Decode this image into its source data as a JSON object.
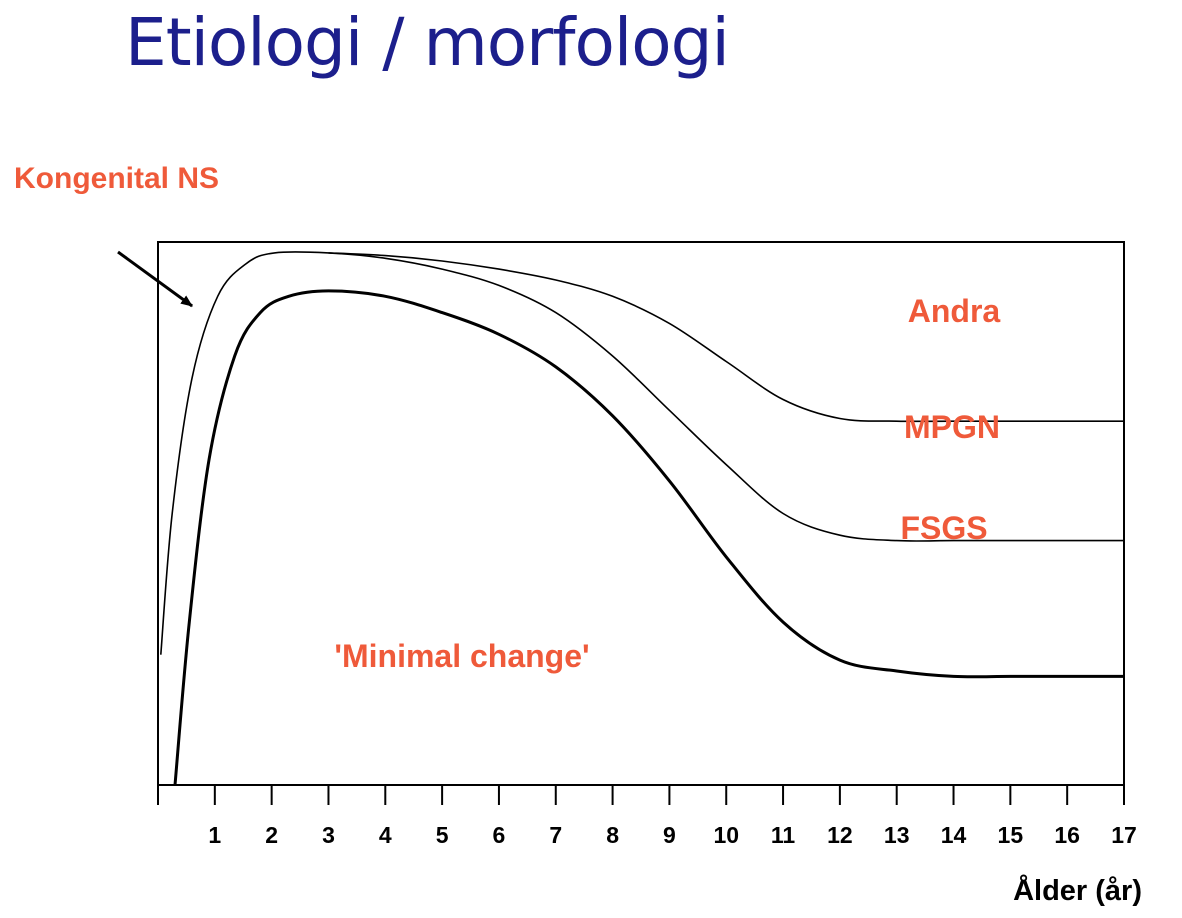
{
  "slide": {
    "title": "Etiologi / morfologi"
  },
  "chart_data": {
    "type": "area",
    "title": "Etiologi / morfologi",
    "xlabel": "Ålder (år)",
    "ylabel": "",
    "xlim": [
      0,
      17
    ],
    "x_ticks": [
      1,
      2,
      3,
      4,
      5,
      6,
      7,
      8,
      9,
      10,
      11,
      12,
      13,
      14,
      15,
      16,
      17
    ],
    "ylim": [
      0,
      1
    ],
    "grid": false,
    "annotation": {
      "text": "Kongenital NS",
      "points_to_x": 0.6
    },
    "regions": [
      {
        "name": "'Minimal change'"
      },
      {
        "name": "FSGS"
      },
      {
        "name": "MPGN"
      },
      {
        "name": "Andra"
      }
    ],
    "series": [
      {
        "name": "",
        "stroke": "thick",
        "x": [
          0.3,
          0.55,
          0.9,
          1.35,
          1.8,
          2.3,
          3,
          4,
          5,
          6,
          7,
          8,
          9,
          10,
          11,
          12,
          13,
          14,
          15,
          16,
          17
        ],
        "values": [
          0.0,
          0.3,
          0.6,
          0.79,
          0.87,
          0.9,
          0.91,
          0.9,
          0.87,
          0.83,
          0.77,
          0.68,
          0.56,
          0.42,
          0.3,
          0.23,
          0.21,
          0.2,
          0.2,
          0.2,
          0.2
        ]
      },
      {
        "name": "",
        "stroke": "thin",
        "x": [
          0.05,
          0.25,
          0.6,
          1.05,
          1.55,
          2.05,
          3,
          4,
          5,
          6,
          7,
          8,
          9,
          10,
          11,
          12,
          13,
          14,
          15,
          16,
          17
        ],
        "values": [
          0.24,
          0.5,
          0.75,
          0.9,
          0.96,
          0.98,
          0.98,
          0.97,
          0.95,
          0.92,
          0.87,
          0.79,
          0.69,
          0.59,
          0.5,
          0.46,
          0.45,
          0.45,
          0.45,
          0.45,
          0.45
        ]
      },
      {
        "name": "",
        "stroke": "thin",
        "x": [
          3,
          4,
          5,
          6,
          7,
          8,
          9,
          10,
          11,
          12,
          13,
          14,
          15,
          16,
          17
        ],
        "values": [
          0.98,
          0.975,
          0.965,
          0.95,
          0.93,
          0.9,
          0.85,
          0.78,
          0.71,
          0.675,
          0.67,
          0.67,
          0.67,
          0.67,
          0.67
        ]
      }
    ],
    "colors": {
      "title": "#1c1f8c",
      "labels": "#ef5a3a",
      "axis": "#000000"
    }
  }
}
